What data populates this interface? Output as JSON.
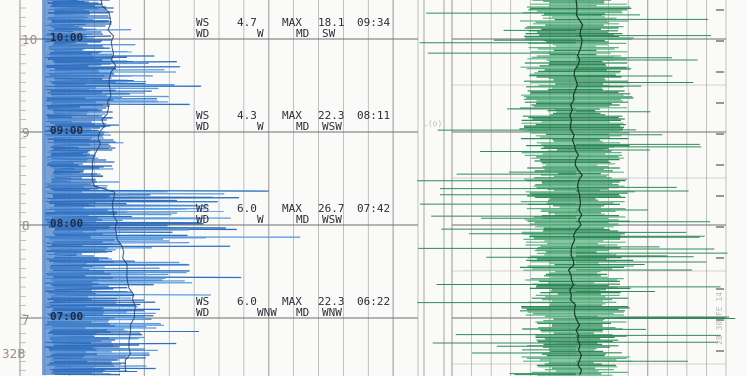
{
  "chart_data": {
    "type": "chart_recorder_strip",
    "colors": {
      "paper": "#fafaf8",
      "grid": "#a7a7a7",
      "speed_trace": "#2f6fc0",
      "speed_trace_light": "#5b9be0",
      "direction_trace": "#2f8a5a",
      "direction_trace_light": "#5fb485",
      "text": "#2b2f3a",
      "edge_numbers": "#9c8a86"
    },
    "edge_numbers": [
      "10",
      "9",
      "8",
      "7"
    ],
    "bottom_left_label": "32B",
    "right_panel_label": "L(o)",
    "right_edge_faint_text": "28 30 FE 14",
    "hour_blocks": [
      {
        "time_label": "10:00",
        "line1": [
          "WS",
          "4.7",
          "MAX",
          "18.1",
          "09:34"
        ],
        "line2": [
          "WD",
          "W",
          "MD",
          "SW"
        ]
      },
      {
        "time_label": "09:00",
        "line1": [
          "WS",
          "4.3",
          "MAX",
          "22.3",
          "08:11"
        ],
        "line2": [
          "WD",
          "W",
          "MD",
          "WSW"
        ]
      },
      {
        "time_label": "08:00",
        "line1": [
          "WS",
          "6.0",
          "MAX",
          "26.7",
          "07:42"
        ],
        "line2": [
          "WD",
          "W",
          "MD",
          "WSW"
        ]
      },
      {
        "time_label": "07:00",
        "line1": [
          "WS",
          "6.0",
          "MAX",
          "22.3",
          "06:22"
        ],
        "line2": [
          "WD",
          "WNW",
          "MD",
          "WNW"
        ]
      }
    ]
  }
}
